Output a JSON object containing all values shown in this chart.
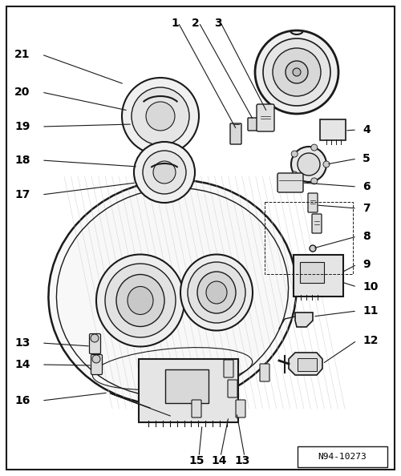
{
  "bg_color": "#ffffff",
  "border_color": "#000000",
  "figure_width": 5.0,
  "figure_height": 5.94,
  "dpi": 100,
  "ref_code": "N94-10273",
  "lc": "#1a1a1a",
  "label_fontsize": 10,
  "ref_fontsize": 8
}
